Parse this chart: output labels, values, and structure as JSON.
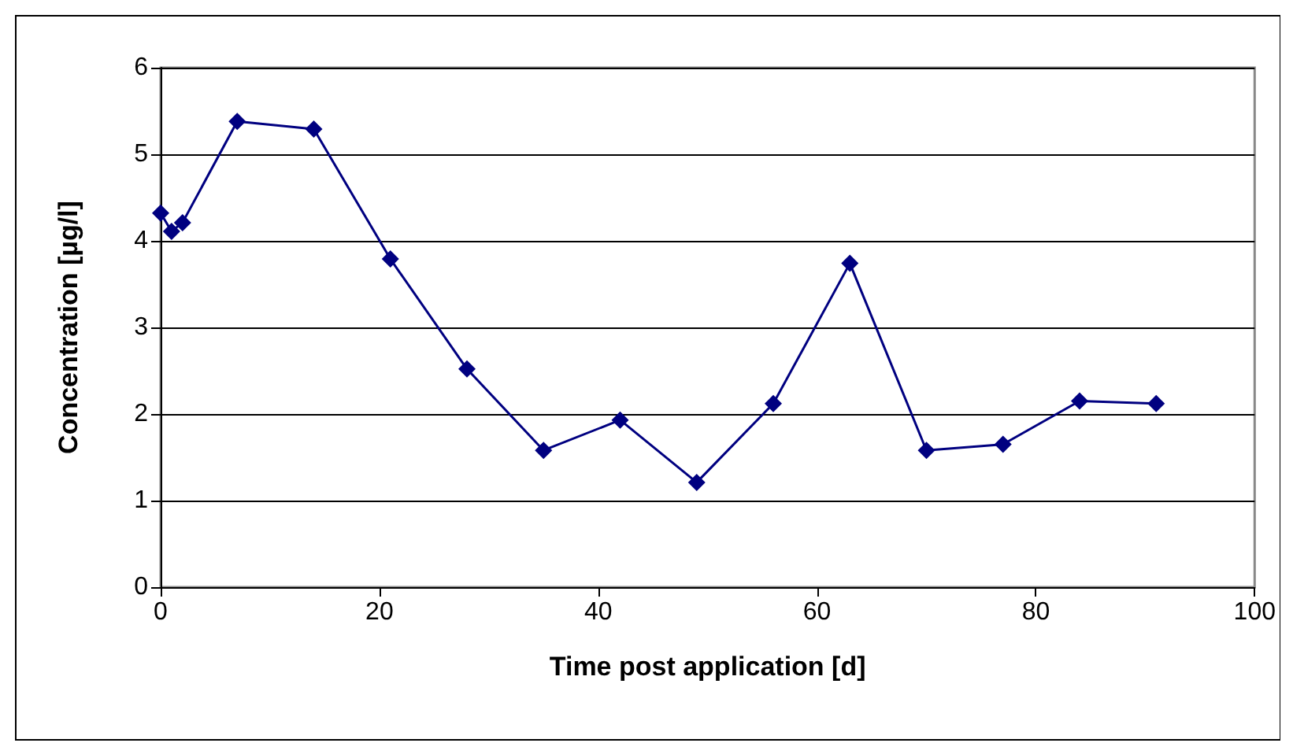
{
  "chart_data": {
    "type": "line",
    "xlabel": "Time post application [d]",
    "ylabel": "Concentration [µg/l]",
    "x": [
      0,
      1,
      2,
      7,
      14,
      21,
      28,
      35,
      42,
      49,
      56,
      63,
      70,
      77,
      84,
      91
    ],
    "series": [
      {
        "color": "#000080",
        "values": [
          4.32,
          4.11,
          4.21,
          5.38,
          5.29,
          3.79,
          2.52,
          1.58,
          1.93,
          1.21,
          2.12,
          3.74,
          1.58,
          1.65,
          2.15,
          2.12
        ]
      }
    ],
    "xlim": [
      0,
      100
    ],
    "xticks": [
      0,
      20,
      40,
      60,
      80,
      100
    ],
    "ylim": [
      0,
      6
    ],
    "yticks": [
      0,
      1,
      2,
      3,
      4,
      5,
      6
    ],
    "grid": "y",
    "marker": "diamond",
    "line_style": "solid"
  }
}
